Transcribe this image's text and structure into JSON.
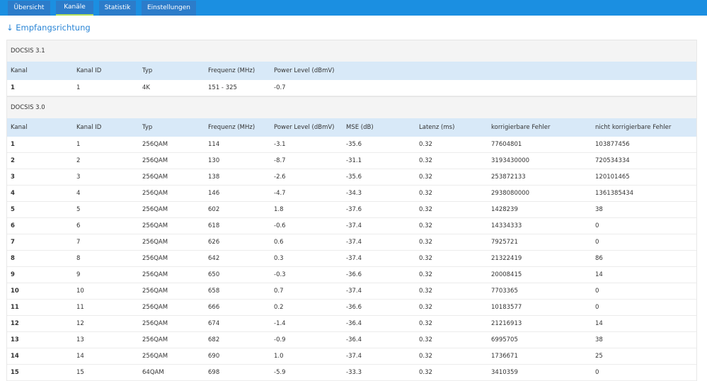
{
  "tabs": [
    "Übersicht",
    "Kanäle",
    "Statistik",
    "Einstellungen"
  ],
  "heading": "↓ Empfangsrichtung",
  "sections": [
    {
      "title": "DOCSIS 3.1",
      "columns": [
        "Kanal",
        "Kanal ID",
        "Typ",
        "Frequenz (MHz)",
        "Power Level (dBmV)"
      ],
      "rows": [
        [
          "1",
          "1",
          "4K",
          "151 - 325",
          "-0.7"
        ]
      ]
    },
    {
      "title": "DOCSIS 3.0",
      "columns": [
        "Kanal",
        "Kanal ID",
        "Typ",
        "Frequenz (MHz)",
        "Power Level (dBmV)",
        "MSE (dB)",
        "Latenz (ms)",
        "korrigierbare Fehler",
        "nicht korrigierbare Fehler"
      ],
      "rows": [
        [
          "1",
          "1",
          "256QAM",
          "114",
          "-3.1",
          "-35.6",
          "0.32",
          "77604801",
          "103877456"
        ],
        [
          "2",
          "2",
          "256QAM",
          "130",
          "-8.7",
          "-31.1",
          "0.32",
          "3193430000",
          "720534334"
        ],
        [
          "3",
          "3",
          "256QAM",
          "138",
          "-2.6",
          "-35.6",
          "0.32",
          "253872133",
          "120101465"
        ],
        [
          "4",
          "4",
          "256QAM",
          "146",
          "-4.7",
          "-34.3",
          "0.32",
          "2938080000",
          "1361385434"
        ],
        [
          "5",
          "5",
          "256QAM",
          "602",
          "1.8",
          "-37.6",
          "0.32",
          "1428239",
          "38"
        ],
        [
          "6",
          "6",
          "256QAM",
          "618",
          "-0.6",
          "-37.4",
          "0.32",
          "14334333",
          "0"
        ],
        [
          "7",
          "7",
          "256QAM",
          "626",
          "0.6",
          "-37.4",
          "0.32",
          "7925721",
          "0"
        ],
        [
          "8",
          "8",
          "256QAM",
          "642",
          "0.3",
          "-37.4",
          "0.32",
          "21322419",
          "86"
        ],
        [
          "9",
          "9",
          "256QAM",
          "650",
          "-0.3",
          "-36.6",
          "0.32",
          "20008415",
          "14"
        ],
        [
          "10",
          "10",
          "256QAM",
          "658",
          "0.7",
          "-37.4",
          "0.32",
          "7703365",
          "0"
        ],
        [
          "11",
          "11",
          "256QAM",
          "666",
          "0.2",
          "-36.6",
          "0.32",
          "10183577",
          "0"
        ],
        [
          "12",
          "12",
          "256QAM",
          "674",
          "-1.4",
          "-36.4",
          "0.32",
          "21216913",
          "14"
        ],
        [
          "13",
          "13",
          "256QAM",
          "682",
          "-0.9",
          "-36.4",
          "0.32",
          "6995705",
          "38"
        ],
        [
          "14",
          "14",
          "256QAM",
          "690",
          "1.0",
          "-37.4",
          "0.32",
          "1736671",
          "25"
        ],
        [
          "15",
          "15",
          "64QAM",
          "698",
          "-5.9",
          "-33.3",
          "0.32",
          "3410359",
          "0"
        ]
      ]
    }
  ]
}
